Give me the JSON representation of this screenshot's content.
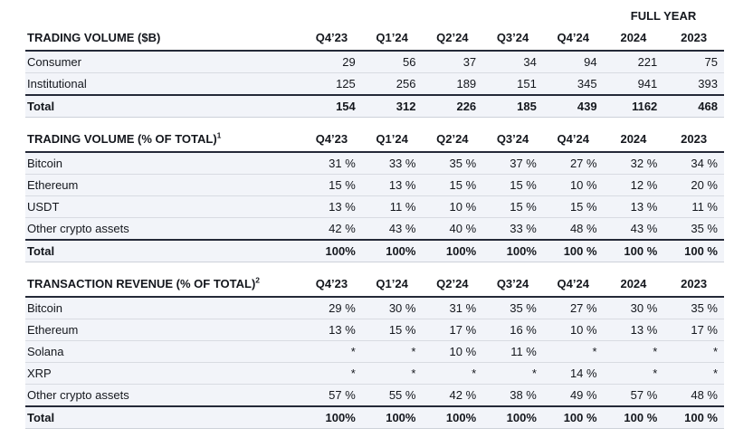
{
  "full_year_label": "FULL YEAR",
  "columns": [
    "Q4’23",
    "Q1’24",
    "Q2’24",
    "Q3’24",
    "Q4’24",
    "2024",
    "2023"
  ],
  "tables": [
    {
      "title": "TRADING VOLUME ($B)",
      "superscript": "",
      "rows": [
        {
          "label": "Consumer",
          "is_total": false,
          "values": [
            "29",
            "56",
            "37",
            "34",
            "94",
            "221",
            "75"
          ]
        },
        {
          "label": "Institutional",
          "is_total": false,
          "values": [
            "125",
            "256",
            "189",
            "151",
            "345",
            "941",
            "393"
          ]
        },
        {
          "label": "Total",
          "is_total": true,
          "values": [
            "154",
            "312",
            "226",
            "185",
            "439",
            "1162",
            "468"
          ]
        }
      ]
    },
    {
      "title": "TRADING VOLUME (% OF TOTAL)",
      "superscript": "1",
      "rows": [
        {
          "label": "Bitcoin",
          "is_total": false,
          "values": [
            "31 %",
            "33 %",
            "35 %",
            "37 %",
            "27 %",
            "32 %",
            "34 %"
          ]
        },
        {
          "label": "Ethereum",
          "is_total": false,
          "values": [
            "15 %",
            "13 %",
            "15 %",
            "15 %",
            "10 %",
            "12 %",
            "20 %"
          ]
        },
        {
          "label": "USDT",
          "is_total": false,
          "values": [
            "13 %",
            "11 %",
            "10 %",
            "15 %",
            "15 %",
            "13 %",
            "11 %"
          ]
        },
        {
          "label": "Other crypto assets",
          "is_total": false,
          "values": [
            "42 %",
            "43 %",
            "40 %",
            "33 %",
            "48 %",
            "43 %",
            "35 %"
          ]
        },
        {
          "label": "Total",
          "is_total": true,
          "values": [
            "100%",
            "100%",
            "100%",
            "100%",
            "100 %",
            "100 %",
            "100 %"
          ]
        }
      ]
    },
    {
      "title": "TRANSACTION REVENUE (% OF TOTAL)",
      "superscript": "2",
      "rows": [
        {
          "label": "Bitcoin",
          "is_total": false,
          "values": [
            "29 %",
            "30 %",
            "31 %",
            "35 %",
            "27 %",
            "30 %",
            "35 %"
          ]
        },
        {
          "label": "Ethereum",
          "is_total": false,
          "values": [
            "13 %",
            "15 %",
            "17 %",
            "16 %",
            "10 %",
            "13 %",
            "17 %"
          ]
        },
        {
          "label": "Solana",
          "is_total": false,
          "values": [
            "*",
            "*",
            "10 %",
            "11 %",
            "*",
            "*",
            "*"
          ]
        },
        {
          "label": "XRP",
          "is_total": false,
          "values": [
            "*",
            "*",
            "*",
            "*",
            "14 %",
            "*",
            "*"
          ]
        },
        {
          "label": "Other crypto assets",
          "is_total": false,
          "values": [
            "57 %",
            "55 %",
            "42 %",
            "38 %",
            "49 %",
            "57 %",
            "48 %"
          ]
        },
        {
          "label": "Total",
          "is_total": true,
          "values": [
            "100%",
            "100%",
            "100%",
            "100%",
            "100 %",
            "100 %",
            "100 %"
          ]
        }
      ]
    }
  ],
  "colors": {
    "page_background": "#ffffff",
    "row_background": "#f2f4f9",
    "row_separator": "#d8dbe2",
    "heavy_rule": "#242938",
    "text": "#14171d"
  }
}
